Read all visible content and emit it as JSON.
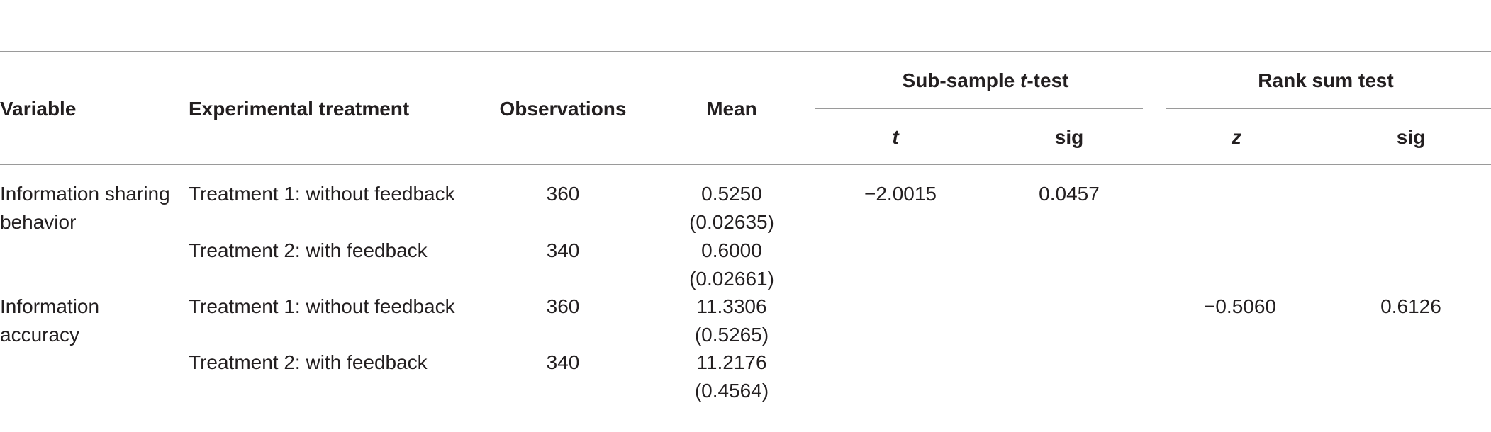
{
  "table": {
    "headers": {
      "variable": "Variable",
      "treatment": "Experimental treatment",
      "observations": "Observations",
      "mean": "Mean",
      "ttest_group_pre": "Sub-sample ",
      "ttest_group_italic": "t",
      "ttest_group_post": "-test",
      "ranksum_group": "Rank sum test",
      "t": "t",
      "t_sig": "sig",
      "z": "z",
      "z_sig": "sig"
    },
    "rows": [
      {
        "variable_line1": "Information sharing",
        "variable_line2": "behavior",
        "treatment": "Treatment 1: without feedback",
        "observations": "360",
        "mean": "0.5250",
        "se": "(0.02635)",
        "t": "−2.0015",
        "t_sig": "0.0457",
        "z": "",
        "z_sig": ""
      },
      {
        "variable_line1": "",
        "variable_line2": "",
        "treatment": "Treatment 2: with feedback",
        "observations": "340",
        "mean": "0.6000",
        "se": "(0.02661)",
        "t": "",
        "t_sig": "",
        "z": "",
        "z_sig": ""
      },
      {
        "variable_line1": "Information",
        "variable_line2": "accuracy",
        "treatment": "Treatment 1: without feedback",
        "observations": "360",
        "mean": "11.3306",
        "se": "(0.5265)",
        "t": "",
        "t_sig": "",
        "z": "−0.5060",
        "z_sig": "0.6126"
      },
      {
        "variable_line1": "",
        "variable_line2": "",
        "treatment": "Treatment 2: with feedback",
        "observations": "340",
        "mean": "11.2176",
        "se": "(0.4564)",
        "t": "",
        "t_sig": "",
        "z": "",
        "z_sig": ""
      }
    ]
  }
}
